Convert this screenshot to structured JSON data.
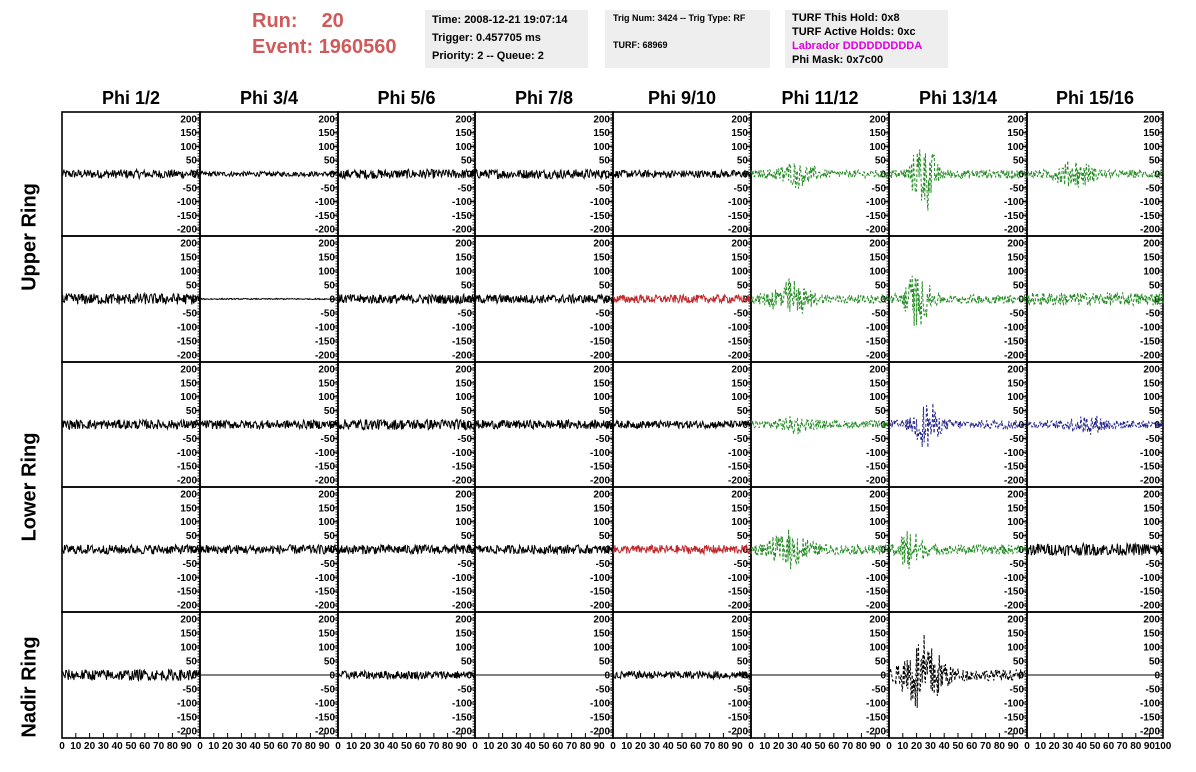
{
  "header": {
    "run_label": "Run:",
    "run_value": "20",
    "event_label": "Event:",
    "event_value": "1960560",
    "info_time": "Time: 2008-12-21 19:07:14",
    "info_trigger": "Trigger: 0.457705 ms",
    "info_priority": "Priority: 2 -- Queue: 2",
    "info_trig": "Trig Num: 3424 -- Trig Type: RF",
    "info_turf": "TURF: 68969",
    "info_hold": "TURF This Hold: 0x8",
    "info_active": "TURF Active Holds: 0xc",
    "info_labrador": "Labrador DDDDDDDDDA",
    "info_phimask": "Phi Mask: 0x7c00"
  },
  "ring_labels": [
    "Upper Ring",
    "Lower Ring",
    "Nadir Ring"
  ],
  "colors": {
    "header_red": "#d05a5a",
    "info_bg": "#eeeeee",
    "labrador_magenta": "#e000e0",
    "trace_black": "#000000",
    "trace_green": "#228b22",
    "trace_red": "#c0282c",
    "trace_blue": "#22228c"
  },
  "chart_data": {
    "type": "line",
    "columns": [
      "Phi 1/2",
      "Phi 3/4",
      "Phi 5/6",
      "Phi 7/8",
      "Phi 9/10",
      "Phi 11/12",
      "Phi 13/14",
      "Phi 15/16"
    ],
    "ylim": [
      -225,
      225
    ],
    "xlim": [
      0,
      100
    ],
    "yticks": [
      "200",
      "150",
      "100",
      "50",
      "0",
      "-50",
      "-100",
      "-150",
      "-200"
    ],
    "xticks": [
      "0",
      "10",
      "20",
      "30",
      "40",
      "50",
      "60",
      "70",
      "80",
      "90",
      "100"
    ],
    "rows": [
      {
        "cells": [
          {
            "style": "black",
            "amp": 16,
            "burst": null
          },
          {
            "style": "black",
            "amp": 9,
            "burst": null
          },
          {
            "style": "black",
            "amp": 17,
            "burst": null
          },
          {
            "style": "black",
            "amp": 17,
            "burst": null
          },
          {
            "style": "black",
            "amp": 14,
            "burst": null
          },
          {
            "style": "green",
            "amp": 14,
            "burst": {
              "center": 32,
              "width": 22,
              "peak": 60
            }
          },
          {
            "style": "green",
            "amp": 16,
            "burst": {
              "center": 25,
              "width": 14,
              "peak": 170
            }
          },
          {
            "style": "green",
            "amp": 14,
            "burst": {
              "center": 35,
              "width": 24,
              "peak": 60
            }
          }
        ]
      },
      {
        "cells": [
          {
            "style": "black",
            "amp": 20,
            "burst": null
          },
          {
            "style": "black",
            "amp": 2,
            "burst": null
          },
          {
            "style": "black",
            "amp": 17,
            "burst": null
          },
          {
            "style": "black",
            "amp": 16,
            "burst": null
          },
          {
            "style": "red",
            "amp": 15,
            "burst": null
          },
          {
            "style": "green",
            "amp": 16,
            "burst": {
              "center": 28,
              "width": 22,
              "peak": 85
            }
          },
          {
            "style": "green",
            "amp": 16,
            "burst": {
              "center": 20,
              "width": 16,
              "peak": 120
            }
          },
          {
            "style": "green",
            "amp": 24,
            "burst": null
          }
        ]
      },
      {
        "cells": [
          {
            "style": "black",
            "amp": 17,
            "burst": null
          },
          {
            "style": "black",
            "amp": 16,
            "burst": null
          },
          {
            "style": "black",
            "amp": 19,
            "burst": null
          },
          {
            "style": "black",
            "amp": 16,
            "burst": null
          },
          {
            "style": "black",
            "amp": 14,
            "burst": null
          },
          {
            "style": "green",
            "amp": 14,
            "burst": {
              "center": 32,
              "width": 20,
              "peak": 40
            }
          },
          {
            "style": "blue",
            "amp": 16,
            "burst": {
              "center": 27,
              "width": 14,
              "peak": 110
            }
          },
          {
            "style": "blue",
            "amp": 14,
            "burst": {
              "center": 45,
              "width": 25,
              "peak": 40
            }
          }
        ]
      },
      {
        "cells": [
          {
            "style": "black",
            "amp": 17,
            "burst": null
          },
          {
            "style": "black",
            "amp": 17,
            "burst": null
          },
          {
            "style": "black",
            "amp": 17,
            "burst": null
          },
          {
            "style": "black",
            "amp": 16,
            "burst": null
          },
          {
            "style": "red",
            "amp": 16,
            "burst": null
          },
          {
            "style": "green",
            "amp": 18,
            "burst": {
              "center": 28,
              "width": 22,
              "peak": 85
            }
          },
          {
            "style": "green",
            "amp": 18,
            "burst": {
              "center": 15,
              "width": 14,
              "peak": 100
            }
          },
          {
            "style": "black",
            "amp": 22,
            "burst": null
          }
        ]
      },
      {
        "cells": [
          {
            "style": "black",
            "amp": 20,
            "burst": null
          },
          {
            "style": "flat",
            "amp": 0,
            "burst": null
          },
          {
            "style": "black",
            "amp": 15,
            "burst": null
          },
          {
            "style": "flat",
            "amp": 0,
            "burst": null
          },
          {
            "style": "black",
            "amp": 14,
            "burst": null
          },
          {
            "style": "flat",
            "amp": 0,
            "burst": null
          },
          {
            "style": "black-dash",
            "amp": 20,
            "burst": {
              "center": 25,
              "width": 24,
              "peak": 180
            }
          },
          {
            "style": "flat",
            "amp": 0,
            "burst": null
          }
        ]
      }
    ]
  }
}
